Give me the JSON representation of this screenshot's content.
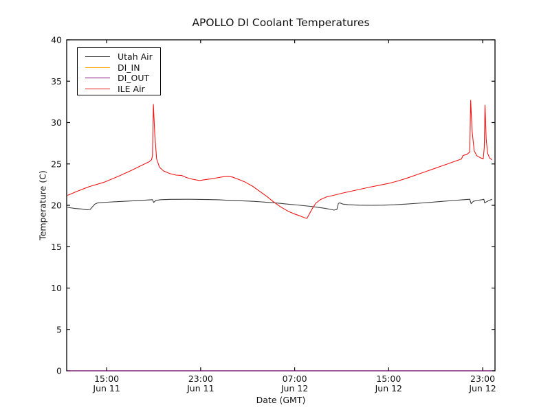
{
  "chart_data": {
    "type": "line",
    "title": "APOLLO DI Coolant Temperatures",
    "xlabel": "Date (GMT)",
    "ylabel": "Temperature (C)",
    "x_unit": "hours since Jun 11 00:00 GMT",
    "xlim": [
      11.6,
      48.05
    ],
    "ylim": [
      0,
      40
    ],
    "yticks": [
      0,
      5,
      10,
      15,
      20,
      25,
      30,
      35,
      40
    ],
    "xticks": [
      {
        "pos": 15,
        "line1": "15:00",
        "line2": "Jun 11"
      },
      {
        "pos": 23,
        "line1": "23:00",
        "line2": "Jun 11"
      },
      {
        "pos": 31,
        "line1": "07:00",
        "line2": "Jun 12"
      },
      {
        "pos": 39,
        "line1": "15:00",
        "line2": "Jun 12"
      },
      {
        "pos": 47,
        "line1": "23:00",
        "line2": "Jun 12"
      }
    ],
    "grid": false,
    "legend_position": "upper left",
    "series": [
      {
        "name": "Utah Air",
        "color": "#3c3c3c",
        "points": [
          [
            11.67,
            19.75
          ],
          [
            12.3,
            19.62
          ],
          [
            12.9,
            19.55
          ],
          [
            13.35,
            19.45
          ],
          [
            13.6,
            19.5
          ],
          [
            13.78,
            19.8
          ],
          [
            14.0,
            20.15
          ],
          [
            14.25,
            20.3
          ],
          [
            15,
            20.37
          ],
          [
            16,
            20.45
          ],
          [
            17,
            20.52
          ],
          [
            18,
            20.6
          ],
          [
            18.9,
            20.68
          ],
          [
            19.0,
            20.35
          ],
          [
            19.2,
            20.6
          ],
          [
            19.6,
            20.68
          ],
          [
            20.5,
            20.72
          ],
          [
            22,
            20.73
          ],
          [
            23.5,
            20.7
          ],
          [
            24.5,
            20.67
          ],
          [
            25.5,
            20.6
          ],
          [
            26.5,
            20.55
          ],
          [
            27.5,
            20.48
          ],
          [
            28.5,
            20.38
          ],
          [
            29.5,
            20.27
          ],
          [
            30.5,
            20.13
          ],
          [
            31.5,
            20.0
          ],
          [
            32.5,
            19.85
          ],
          [
            33.5,
            19.65
          ],
          [
            34.1,
            19.5
          ],
          [
            34.35,
            19.42
          ],
          [
            34.6,
            19.52
          ],
          [
            34.72,
            20.22
          ],
          [
            34.82,
            20.3
          ],
          [
            35.1,
            20.15
          ],
          [
            35.6,
            20.07
          ],
          [
            36.5,
            20.02
          ],
          [
            37.5,
            20.0
          ],
          [
            38.5,
            20.02
          ],
          [
            39.5,
            20.07
          ],
          [
            40.5,
            20.15
          ],
          [
            41.5,
            20.25
          ],
          [
            42.5,
            20.35
          ],
          [
            43.5,
            20.47
          ],
          [
            44.5,
            20.58
          ],
          [
            45.4,
            20.68
          ],
          [
            45.9,
            20.73
          ],
          [
            46.02,
            20.2
          ],
          [
            46.2,
            20.48
          ],
          [
            46.5,
            20.58
          ],
          [
            46.95,
            20.68
          ],
          [
            47.1,
            20.73
          ],
          [
            47.17,
            20.28
          ],
          [
            47.35,
            20.45
          ],
          [
            47.6,
            20.62
          ],
          [
            47.8,
            20.72
          ]
        ]
      },
      {
        "name": "DI_IN",
        "color": "#ffa500",
        "points": [
          [
            11.67,
            0
          ],
          [
            47.8,
            0
          ]
        ]
      },
      {
        "name": "DI_OUT",
        "color": "#800080",
        "points": [
          [
            11.67,
            0
          ],
          [
            47.8,
            0
          ]
        ]
      },
      {
        "name": "ILE Air",
        "color": "#f01515",
        "points": [
          [
            11.67,
            21.2
          ],
          [
            12.5,
            21.7
          ],
          [
            13.5,
            22.25
          ],
          [
            14.8,
            22.8
          ],
          [
            16,
            23.5
          ],
          [
            17,
            24.15
          ],
          [
            18,
            24.85
          ],
          [
            18.6,
            25.25
          ],
          [
            18.82,
            25.5
          ],
          [
            18.9,
            26.0
          ],
          [
            18.98,
            32.2
          ],
          [
            19.1,
            28.5
          ],
          [
            19.25,
            25.6
          ],
          [
            19.5,
            24.6
          ],
          [
            19.85,
            24.15
          ],
          [
            20.35,
            23.85
          ],
          [
            20.9,
            23.65
          ],
          [
            21.4,
            23.6
          ],
          [
            21.8,
            23.35
          ],
          [
            22.3,
            23.15
          ],
          [
            22.9,
            23.0
          ],
          [
            23.4,
            23.1
          ],
          [
            23.9,
            23.2
          ],
          [
            24.4,
            23.32
          ],
          [
            24.9,
            23.45
          ],
          [
            25.3,
            23.52
          ],
          [
            25.7,
            23.42
          ],
          [
            26.2,
            23.15
          ],
          [
            26.8,
            22.8
          ],
          [
            27.4,
            22.32
          ],
          [
            28.0,
            21.72
          ],
          [
            28.6,
            21.1
          ],
          [
            29.2,
            20.42
          ],
          [
            29.8,
            19.82
          ],
          [
            30.4,
            19.32
          ],
          [
            31.0,
            18.95
          ],
          [
            31.5,
            18.7
          ],
          [
            31.85,
            18.5
          ],
          [
            32.05,
            18.42
          ],
          [
            32.25,
            18.95
          ],
          [
            32.5,
            19.6
          ],
          [
            32.8,
            20.25
          ],
          [
            33.2,
            20.7
          ],
          [
            33.7,
            21.0
          ],
          [
            34.3,
            21.2
          ],
          [
            35.0,
            21.45
          ],
          [
            35.8,
            21.7
          ],
          [
            36.6,
            21.95
          ],
          [
            37.4,
            22.2
          ],
          [
            38.2,
            22.42
          ],
          [
            39.0,
            22.65
          ],
          [
            39.8,
            22.95
          ],
          [
            40.6,
            23.3
          ],
          [
            41.4,
            23.7
          ],
          [
            42.2,
            24.1
          ],
          [
            43.0,
            24.5
          ],
          [
            43.8,
            24.9
          ],
          [
            44.6,
            25.3
          ],
          [
            45.2,
            25.6
          ],
          [
            45.32,
            26.0
          ],
          [
            45.7,
            26.2
          ],
          [
            45.9,
            26.45
          ],
          [
            45.98,
            32.7
          ],
          [
            46.1,
            29.0
          ],
          [
            46.28,
            26.6
          ],
          [
            46.5,
            26.0
          ],
          [
            46.8,
            25.75
          ],
          [
            47.05,
            25.62
          ],
          [
            47.14,
            27.0
          ],
          [
            47.2,
            32.1
          ],
          [
            47.3,
            28.0
          ],
          [
            47.42,
            26.3
          ],
          [
            47.6,
            25.7
          ],
          [
            47.8,
            25.5
          ]
        ]
      }
    ]
  }
}
